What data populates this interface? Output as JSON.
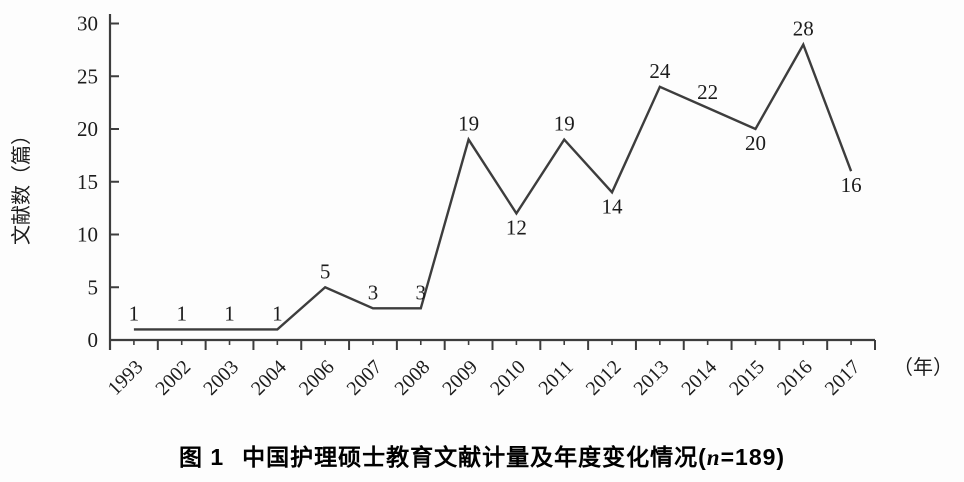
{
  "chart_data": {
    "type": "line",
    "title": "图1 中国护理硕士教育文献计量及年度变化情况(n=189)",
    "categories": [
      "1993",
      "2002",
      "2003",
      "2004",
      "2006",
      "2007",
      "2008",
      "2009",
      "2010",
      "2011",
      "2012",
      "2013",
      "2014",
      "2015",
      "2016",
      "2017"
    ],
    "values": [
      1,
      1,
      1,
      1,
      5,
      3,
      3,
      19,
      12,
      19,
      14,
      24,
      22,
      20,
      28,
      16
    ],
    "ylabel": "文献数（篇）",
    "xlabel": "（年）",
    "ylim": [
      0,
      30
    ],
    "yticks": [
      0,
      5,
      10,
      15,
      20,
      25,
      30
    ],
    "grid": false,
    "legend": "none",
    "line_color": "#3d3d3d",
    "axis_color": "#3d3d3d",
    "label_positions": [
      "above",
      "above",
      "above",
      "above",
      "above",
      "above",
      "above",
      "above",
      "below",
      "above",
      "below",
      "above",
      "above",
      "below",
      "above",
      "below"
    ]
  },
  "caption": {
    "fig_label": "图 1",
    "title_main": "中国护理硕士教育文献计量及年度变化情况(",
    "n_var": "n",
    "n_value": "=189)"
  }
}
